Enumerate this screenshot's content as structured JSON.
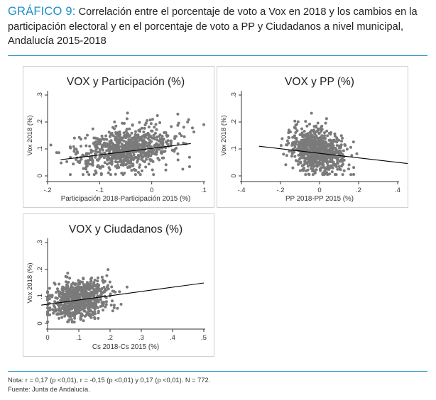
{
  "header": {
    "label": "GRÁFICO 9:",
    "title": "Correlación entre el porcentaje de voto a Vox en 2018 y los cambios en la participación electoral y en el porcentaje de voto a PP y Ciudadanos a nivel municipal, Andalucía 2015-2018"
  },
  "colors": {
    "accent": "#1d8ec9",
    "points": "#7a7a7a",
    "fit": "#000000"
  },
  "chart_data": [
    {
      "type": "scatter",
      "title": "VOX y Participación (%)",
      "xlabel": "Participación 2018-Participación 2015 (%)",
      "ylabel": "Vox 2018 (%)",
      "xlim": [
        -0.2,
        0.1
      ],
      "ylim": [
        0,
        0.3
      ],
      "xticks": [
        -0.2,
        -0.1,
        0,
        0.1
      ],
      "xtick_labels": [
        "-.2",
        "-.1",
        "0",
        ".1"
      ],
      "yticks": [
        0,
        0.1,
        0.2,
        0.3
      ],
      "ytick_labels": [
        "0",
        ".1",
        ".2",
        ".3"
      ],
      "fit_line": {
        "x": [
          -0.175,
          0.075
        ],
        "y": [
          0.06,
          0.12
        ]
      },
      "n_points": 772,
      "cloud": {
        "x_mean": -0.05,
        "x_sd": 0.05,
        "y_mean": 0.1,
        "y_sd": 0.04,
        "slope": 0.24
      }
    },
    {
      "type": "scatter",
      "title": "VOX y PP (%)",
      "xlabel": "PP 2018-PP 2015 (%)",
      "ylabel": "Vox 2018 (%)",
      "xlim": [
        -0.4,
        0.4
      ],
      "ylim": [
        0,
        0.3
      ],
      "xticks": [
        -0.4,
        -0.2,
        0,
        0.2,
        0.4
      ],
      "xtick_labels": [
        "-.4",
        "-.2",
        "0",
        ".2",
        ".4"
      ],
      "yticks": [
        0,
        0.1,
        0.2,
        0.3
      ],
      "ytick_labels": [
        "0",
        ".1",
        ".2",
        ".3"
      ],
      "fit_line": {
        "x": [
          -0.31,
          0.46
        ],
        "y": [
          0.11,
          0.045
        ]
      },
      "n_points": 772,
      "cloud": {
        "x_mean": -0.01,
        "x_sd": 0.07,
        "y_mean": 0.09,
        "y_sd": 0.04,
        "slope": -0.08
      }
    },
    {
      "type": "scatter",
      "title": "VOX y Ciudadanos (%)",
      "xlabel": "Cs 2018-Cs 2015 (%)",
      "ylabel": "Vox 2018 (%)",
      "xlim": [
        0,
        0.5
      ],
      "ylim": [
        0,
        0.3
      ],
      "xticks": [
        0,
        0.1,
        0.2,
        0.3,
        0.4,
        0.5
      ],
      "xtick_labels": [
        "0",
        ".1",
        ".2",
        ".3",
        ".4",
        ".5"
      ],
      "yticks": [
        0,
        0.1,
        0.2,
        0.3
      ],
      "ytick_labels": [
        "0",
        ".1",
        ".2",
        ".3"
      ],
      "fit_line": {
        "x": [
          -0.02,
          0.5
        ],
        "y": [
          0.068,
          0.15
        ]
      },
      "n_points": 772,
      "cloud": {
        "x_mean": 0.1,
        "x_sd": 0.045,
        "y_mean": 0.09,
        "y_sd": 0.035,
        "slope": 0.16
      }
    }
  ],
  "notes": {
    "nota": "Nota: r = 0,17 (p <0,01), r = -0,15 (p <0,01) y 0,17 (p <0,01). N = 772.",
    "fuente": "Fuente: Junta de Andalucía."
  }
}
